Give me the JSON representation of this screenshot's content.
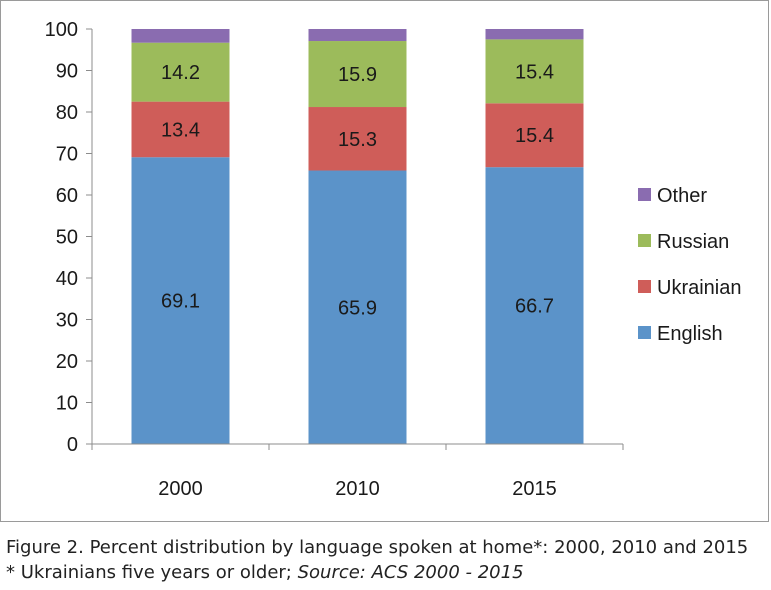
{
  "chart_data": {
    "type": "bar",
    "stacked": true,
    "categories": [
      "2000",
      "2010",
      "2015"
    ],
    "series": [
      {
        "name": "English",
        "color": "#5b93c9",
        "values": [
          69.1,
          65.9,
          66.7
        ],
        "labels": [
          "69.1",
          "65.9",
          "66.7"
        ]
      },
      {
        "name": "Ukrainian",
        "color": "#cf5d59",
        "values": [
          13.4,
          15.3,
          15.4
        ],
        "labels": [
          "13.4",
          "15.3",
          "15.4"
        ]
      },
      {
        "name": "Russian",
        "color": "#9cbb5b",
        "values": [
          14.2,
          15.9,
          15.4
        ],
        "labels": [
          "14.2",
          "15.9",
          "15.4"
        ]
      },
      {
        "name": "Other",
        "color": "#8a6cb0",
        "values": [
          3.3,
          2.9,
          2.5
        ],
        "labels": [
          "",
          "",
          ""
        ]
      }
    ],
    "ylim": [
      0,
      100
    ],
    "yticks": [
      0,
      10,
      20,
      30,
      40,
      50,
      60,
      70,
      80,
      90,
      100
    ],
    "grid": false,
    "legend": "right",
    "xlabel": "",
    "ylabel": ""
  },
  "caption": {
    "line1": "Figure 2. Percent distribution by language spoken at home*: 2000, 2010 and 2015",
    "line2_prefix": "* Ukrainians five years or older;",
    "line2_source": "Source: ACS 2000 - 2015"
  }
}
